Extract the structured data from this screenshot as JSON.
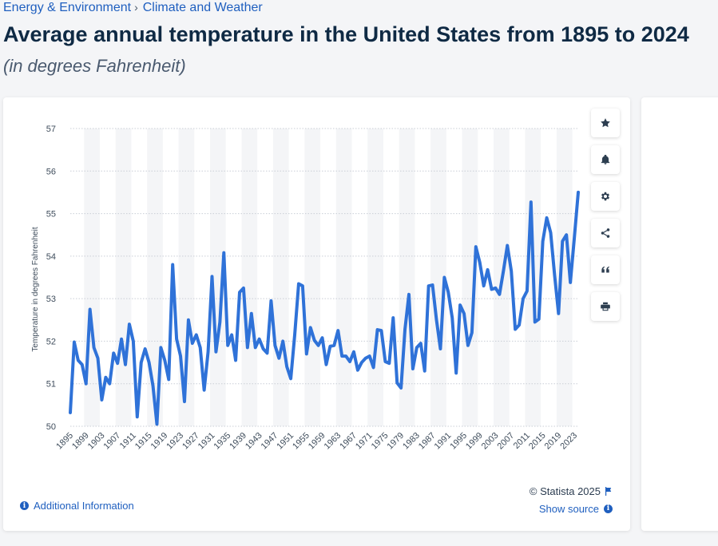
{
  "breadcrumb": {
    "parent": "Energy & Environment",
    "separator": "›",
    "current": "Climate and Weather"
  },
  "header": {
    "title": "Average annual temperature in the United States from 1895 to 2024",
    "subtitle": "(in degrees Fahrenheit)"
  },
  "tools": [
    {
      "name": "favorite-icon"
    },
    {
      "name": "notification-bell-icon"
    },
    {
      "name": "settings-gear-icon"
    },
    {
      "name": "share-icon"
    },
    {
      "name": "citation-icon"
    },
    {
      "name": "print-icon"
    }
  ],
  "footer": {
    "additional_info": "Additional Information",
    "copyright": "© Statista 2025",
    "show_source": "Show source"
  },
  "colors": {
    "line": "#2f72d8",
    "link": "#1f5fbf",
    "title": "#0f2a44",
    "stripe": "#f4f5f7"
  },
  "chart_data": {
    "type": "line",
    "title": "",
    "xlabel": "",
    "ylabel": "Temperature in degrees Fahrenheit",
    "ylim": [
      50,
      57
    ],
    "yticks": [
      50,
      51,
      52,
      53,
      54,
      55,
      56,
      57
    ],
    "xtick_labels": [
      "1895",
      "1899",
      "1903",
      "1907",
      "1911",
      "1915",
      "1919",
      "1923",
      "1927",
      "1931",
      "1935",
      "1939",
      "1943",
      "1947",
      "1951",
      "1955",
      "1959",
      "1963",
      "1967",
      "1971",
      "1975",
      "1979",
      "1983",
      "1987",
      "1991",
      "1995",
      "1999",
      "2003",
      "2007",
      "2011",
      "2015",
      "2019",
      "2023"
    ],
    "grid": true,
    "series": [
      {
        "x": [
          1895,
          1896,
          1897,
          1898,
          1899,
          1900,
          1901,
          1902,
          1903,
          1904,
          1905,
          1906,
          1907,
          1908,
          1909,
          1910,
          1911,
          1912,
          1913,
          1914,
          1915,
          1916,
          1917,
          1918,
          1919,
          1920,
          1921,
          1922,
          1923,
          1924,
          1925,
          1926,
          1927,
          1928,
          1929,
          1930,
          1931,
          1932,
          1933,
          1934,
          1935,
          1936,
          1937,
          1938,
          1939,
          1940,
          1941,
          1942,
          1943,
          1944,
          1945,
          1946,
          1947,
          1948,
          1949,
          1950,
          1951,
          1952,
          1953,
          1954,
          1955,
          1956,
          1957,
          1958,
          1959,
          1960,
          1961,
          1962,
          1963,
          1964,
          1965,
          1966,
          1967,
          1968,
          1969,
          1970,
          1971,
          1972,
          1973,
          1974,
          1975,
          1976,
          1977,
          1978,
          1979,
          1980,
          1981,
          1982,
          1983,
          1984,
          1985,
          1986,
          1987,
          1988,
          1989,
          1990,
          1991,
          1992,
          1993,
          1994,
          1995,
          1996,
          1997,
          1998,
          1999,
          2000,
          2001,
          2002,
          2003,
          2004,
          2005,
          2006,
          2007,
          2008,
          2009,
          2010,
          2011,
          2012,
          2013,
          2014,
          2015,
          2016,
          2017,
          2018,
          2019,
          2020,
          2021,
          2022,
          2023,
          2024
        ],
        "values": [
          50.32,
          51.98,
          51.55,
          51.45,
          51.0,
          52.75,
          51.85,
          51.6,
          50.62,
          51.15,
          51.0,
          51.72,
          51.48,
          52.05,
          51.45,
          52.4,
          52.0,
          50.22,
          51.5,
          51.82,
          51.5,
          50.95,
          50.05,
          51.85,
          51.55,
          51.1,
          53.8,
          52.05,
          51.65,
          50.58,
          52.5,
          51.95,
          52.15,
          51.85,
          50.85,
          51.75,
          53.52,
          51.75,
          52.45,
          54.08,
          51.9,
          52.15,
          51.55,
          53.15,
          53.25,
          51.85,
          52.65,
          51.85,
          52.05,
          51.82,
          51.72,
          52.95,
          51.9,
          51.6,
          52.0,
          51.4,
          51.12,
          52.15,
          53.35,
          53.3,
          51.7,
          52.32,
          52.02,
          51.9,
          52.08,
          51.45,
          51.88,
          51.9,
          52.25,
          51.65,
          51.65,
          51.52,
          51.75,
          51.32,
          51.5,
          51.6,
          51.65,
          51.38,
          52.27,
          52.25,
          51.52,
          51.48,
          52.55,
          51.02,
          50.9,
          52.28,
          53.1,
          51.35,
          51.85,
          51.95,
          51.3,
          53.3,
          53.32,
          52.5,
          51.82,
          53.5,
          53.15,
          52.55,
          51.25,
          52.85,
          52.65,
          51.9,
          52.2,
          54.22,
          53.85,
          53.3,
          53.68,
          53.22,
          53.25,
          53.1,
          53.65,
          54.25,
          53.65,
          52.28,
          52.38,
          53.0,
          53.18,
          55.27,
          52.45,
          52.52,
          54.35,
          54.9,
          54.55,
          53.55,
          52.65,
          54.35,
          54.5,
          53.38,
          54.42,
          55.5
        ]
      }
    ]
  }
}
